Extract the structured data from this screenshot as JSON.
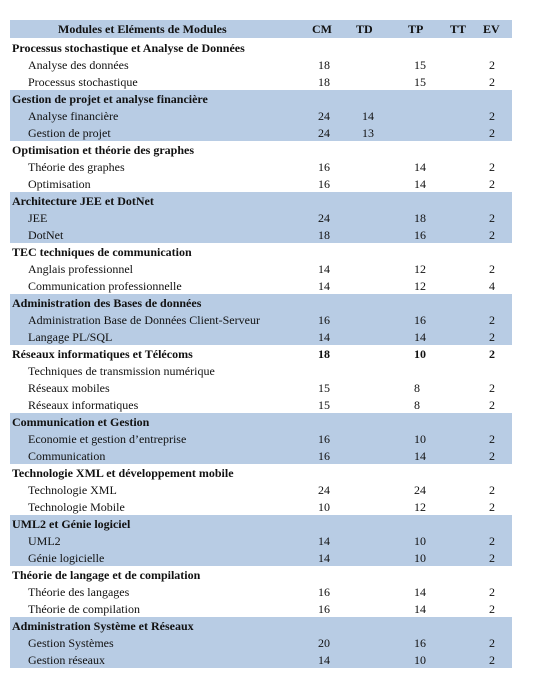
{
  "header": [
    "Modules et Eléments de Modules",
    "CM",
    "TD",
    "TP",
    "TT",
    "EV"
  ],
  "groups": [
    {
      "name": "Processus stochastique et Analyse de Données",
      "values": null,
      "items": [
        {
          "label": "Analyse des données",
          "values": [
            18,
            null,
            15,
            null,
            2
          ]
        },
        {
          "label": "Processus stochastique",
          "values": [
            18,
            null,
            15,
            null,
            2
          ]
        }
      ]
    },
    {
      "name": "Gestion de projet et analyse financière",
      "values": null,
      "items": [
        {
          "label": "Analyse financière",
          "values": [
            24,
            14,
            null,
            null,
            2
          ]
        },
        {
          "label": "Gestion de projet",
          "values": [
            24,
            13,
            null,
            null,
            2
          ]
        }
      ]
    },
    {
      "name": "Optimisation et théorie des graphes",
      "values": null,
      "items": [
        {
          "label": "Théorie des graphes",
          "values": [
            16,
            null,
            14,
            null,
            2
          ]
        },
        {
          "label": "Optimisation",
          "values": [
            16,
            null,
            14,
            null,
            2
          ]
        }
      ]
    },
    {
      "name": "Architecture JEE et DotNet",
      "values": null,
      "items": [
        {
          "label": "JEE",
          "values": [
            24,
            null,
            18,
            null,
            2
          ]
        },
        {
          "label": "DotNet",
          "values": [
            18,
            null,
            16,
            null,
            2
          ]
        }
      ]
    },
    {
      "name": "TEC techniques de communication",
      "values": null,
      "items": [
        {
          "label": "Anglais professionnel",
          "values": [
            14,
            null,
            12,
            null,
            2
          ]
        },
        {
          "label": "Communication professionnelle",
          "values": [
            14,
            null,
            12,
            null,
            4
          ]
        }
      ]
    },
    {
      "name": "Administration des Bases de données",
      "values": null,
      "items": [
        {
          "label": "Administration Base de Données Client-Serveur",
          "values": [
            16,
            null,
            16,
            null,
            2
          ]
        },
        {
          "label": "Langage PL/SQL",
          "values": [
            14,
            null,
            14,
            null,
            2
          ]
        }
      ]
    },
    {
      "name": "Réseaux informatiques et Télécoms",
      "values": [
        18,
        null,
        10,
        null,
        2
      ],
      "items": [
        {
          "label": "Techniques de transmission numérique",
          "values": null
        },
        {
          "label": "Réseaux mobiles",
          "values": [
            15,
            null,
            8,
            null,
            2
          ]
        },
        {
          "label": "Réseaux informatiques",
          "values": [
            15,
            null,
            8,
            null,
            2
          ]
        }
      ]
    },
    {
      "name": "Communication et Gestion",
      "values": null,
      "items": [
        {
          "label": "Economie et gestion d’entreprise",
          "values": [
            16,
            null,
            10,
            null,
            2
          ]
        },
        {
          "label": "Communication",
          "values": [
            16,
            null,
            14,
            null,
            2
          ]
        }
      ]
    },
    {
      "name": "Technologie XML et développement mobile",
      "values": null,
      "items": [
        {
          "label": "Technologie XML",
          "values": [
            24,
            null,
            24,
            null,
            2
          ]
        },
        {
          "label": "Technologie Mobile",
          "values": [
            10,
            null,
            12,
            null,
            2
          ]
        }
      ]
    },
    {
      "name": "UML2 et Génie logiciel",
      "values": null,
      "items": [
        {
          "label": "UML2",
          "values": [
            14,
            null,
            10,
            null,
            2
          ]
        },
        {
          "label": "Génie logicielle",
          "values": [
            14,
            null,
            10,
            null,
            2
          ]
        }
      ]
    },
    {
      "name": "Théorie de langage et de compilation",
      "values": null,
      "items": [
        {
          "label": "Théorie des langages",
          "values": [
            16,
            null,
            14,
            null,
            2
          ]
        },
        {
          "label": "Théorie de compilation",
          "values": [
            16,
            null,
            14,
            null,
            2
          ]
        }
      ]
    },
    {
      "name": "Administration Système et Réseaux",
      "values": null,
      "items": [
        {
          "label": "Gestion Systèmes",
          "values": [
            20,
            null,
            16,
            null,
            2
          ]
        },
        {
          "label": "Gestion réseaux",
          "values": [
            14,
            null,
            10,
            null,
            2
          ]
        }
      ]
    }
  ]
}
